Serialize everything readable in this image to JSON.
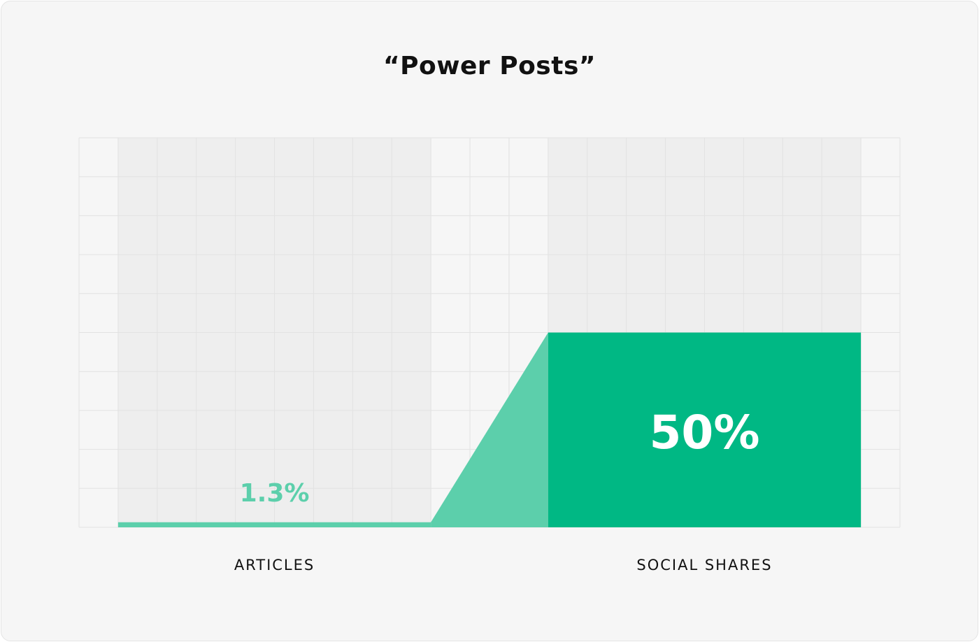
{
  "chart_data": {
    "type": "bar",
    "title": "“Power Posts”",
    "categories": [
      "ARTICLES",
      "SOCIAL SHARES"
    ],
    "values": [
      1.3,
      50
    ],
    "value_labels": [
      "1.3%",
      "50%"
    ],
    "ylim": [
      0,
      100
    ],
    "grid": true,
    "colors": {
      "articles_bar": "#5ccfab",
      "shares_bar": "#00b884",
      "connector": "#5ccfab",
      "articles_label": "#5ccfab",
      "shares_label": "#ffffff",
      "gridline": "#e2e2e2",
      "category_band": "#eeeeee"
    }
  }
}
